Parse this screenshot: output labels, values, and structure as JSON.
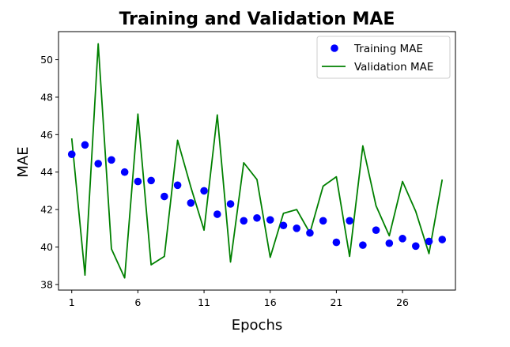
{
  "chart_data": {
    "type": "scatter+line",
    "title": "Training and Validation MAE",
    "xlabel": "Epochs",
    "ylabel": "MAE",
    "xlim": [
      0,
      30
    ],
    "ylim": [
      37.7,
      51.5
    ],
    "xticks": [
      1,
      6,
      11,
      16,
      21,
      26
    ],
    "yticks": [
      38,
      40,
      42,
      44,
      46,
      48,
      50
    ],
    "legend_position": "upper-right",
    "grid": false,
    "series": [
      {
        "name": "Training MAE",
        "style": "points",
        "color": "#0000ff",
        "x": [
          1,
          2,
          3,
          4,
          5,
          6,
          7,
          8,
          9,
          10,
          11,
          12,
          13,
          14,
          15,
          16,
          17,
          18,
          19,
          20,
          21,
          22,
          23,
          24,
          25,
          26,
          27,
          28,
          29
        ],
        "values": [
          44.95,
          45.45,
          44.45,
          44.65,
          44.0,
          43.5,
          43.55,
          42.7,
          43.3,
          42.35,
          43.0,
          41.75,
          42.3,
          41.4,
          41.55,
          41.45,
          41.15,
          41.0,
          40.75,
          41.4,
          40.25,
          41.4,
          40.1,
          40.9,
          40.2,
          40.45,
          40.05,
          40.3,
          40.4
        ]
      },
      {
        "name": "Validation MAE",
        "style": "line",
        "color": "#008000",
        "x": [
          1,
          2,
          3,
          4,
          5,
          6,
          7,
          8,
          9,
          10,
          11,
          12,
          13,
          14,
          15,
          16,
          17,
          18,
          19,
          20,
          21,
          22,
          23,
          24,
          25,
          26,
          27,
          28,
          29
        ],
        "values": [
          45.8,
          38.5,
          50.85,
          39.9,
          38.35,
          47.1,
          39.05,
          39.5,
          45.7,
          43.2,
          40.9,
          47.05,
          39.2,
          44.5,
          43.6,
          39.45,
          41.8,
          42.0,
          40.75,
          43.25,
          43.75,
          39.5,
          45.4,
          42.2,
          40.6,
          43.5,
          41.9,
          39.65,
          43.6
        ]
      }
    ]
  }
}
